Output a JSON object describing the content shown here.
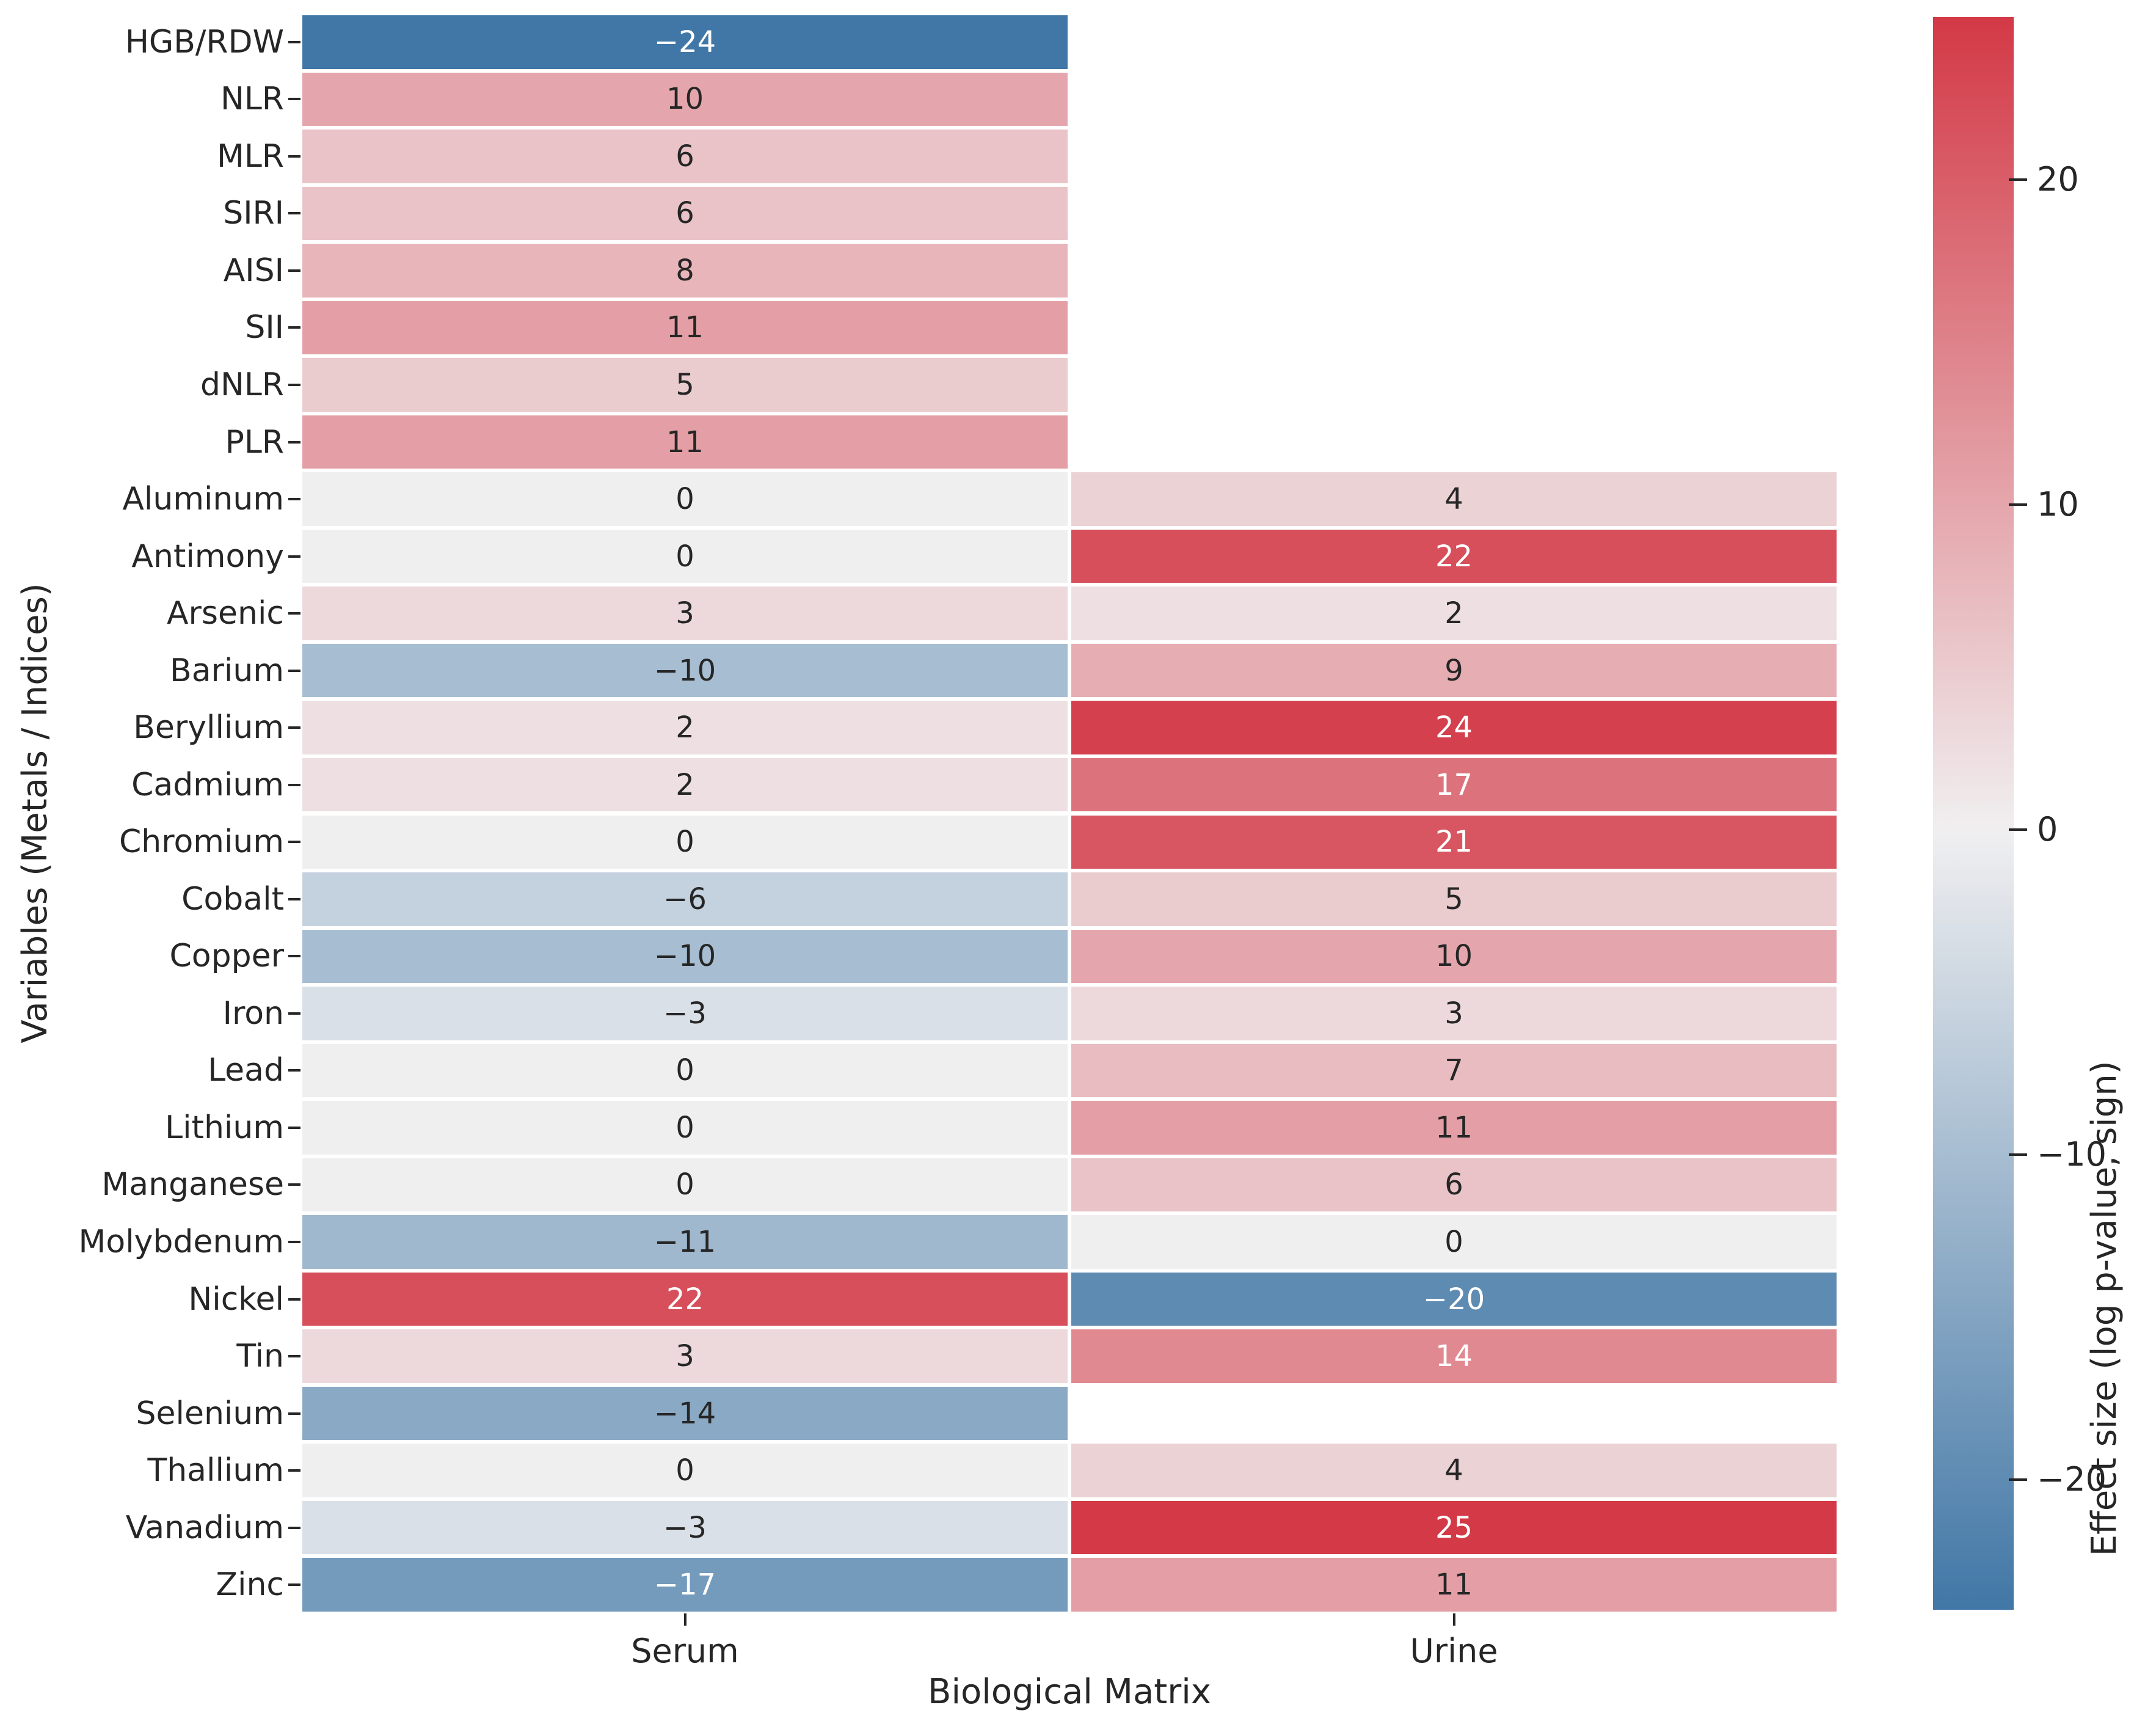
{
  "chart_data": {
    "type": "heatmap",
    "xlabel": "Biological Matrix",
    "ylabel": "Variables (Metals / Indices)",
    "columns": [
      "Serum",
      "Urine"
    ],
    "rows": [
      "HGB/RDW",
      "NLR",
      "MLR",
      "SIRI",
      "AISI",
      "SII",
      "dNLR",
      "PLR",
      "Aluminum",
      "Antimony",
      "Arsenic",
      "Barium",
      "Beryllium",
      "Cadmium",
      "Chromium",
      "Cobalt",
      "Copper",
      "Iron",
      "Lead",
      "Lithium",
      "Manganese",
      "Molybdenum",
      "Nickel",
      "Tin",
      "Selenium",
      "Thallium",
      "Vanadium",
      "Zinc"
    ],
    "series": [
      {
        "name": "Serum",
        "values": [
          -24,
          10,
          6,
          6,
          8,
          11,
          5,
          11,
          0,
          0,
          3,
          -10,
          2,
          2,
          0,
          -6,
          -10,
          -3,
          0,
          0,
          0,
          -11,
          22,
          3,
          -14,
          0,
          -3,
          -17
        ]
      },
      {
        "name": "Urine",
        "values": [
          null,
          null,
          null,
          null,
          null,
          null,
          null,
          null,
          4,
          22,
          2,
          9,
          24,
          17,
          21,
          5,
          10,
          3,
          7,
          11,
          6,
          0,
          -20,
          14,
          null,
          4,
          25,
          11
        ]
      }
    ],
    "colormap": {
      "negative_end": "#4177a6",
      "center": "#f0eff0",
      "positive_end": "#d33946",
      "vmin": -24,
      "vmax": 25,
      "center_value": 0
    },
    "colorbar": {
      "label": "Effect size (log p-value, sign)",
      "ticks": [
        20,
        10,
        0,
        -10,
        -20
      ]
    },
    "annotation_colors": {
      "dark": "#262626",
      "light": "#ffffff"
    },
    "grid": false,
    "legend_position": "right-colorbar"
  }
}
